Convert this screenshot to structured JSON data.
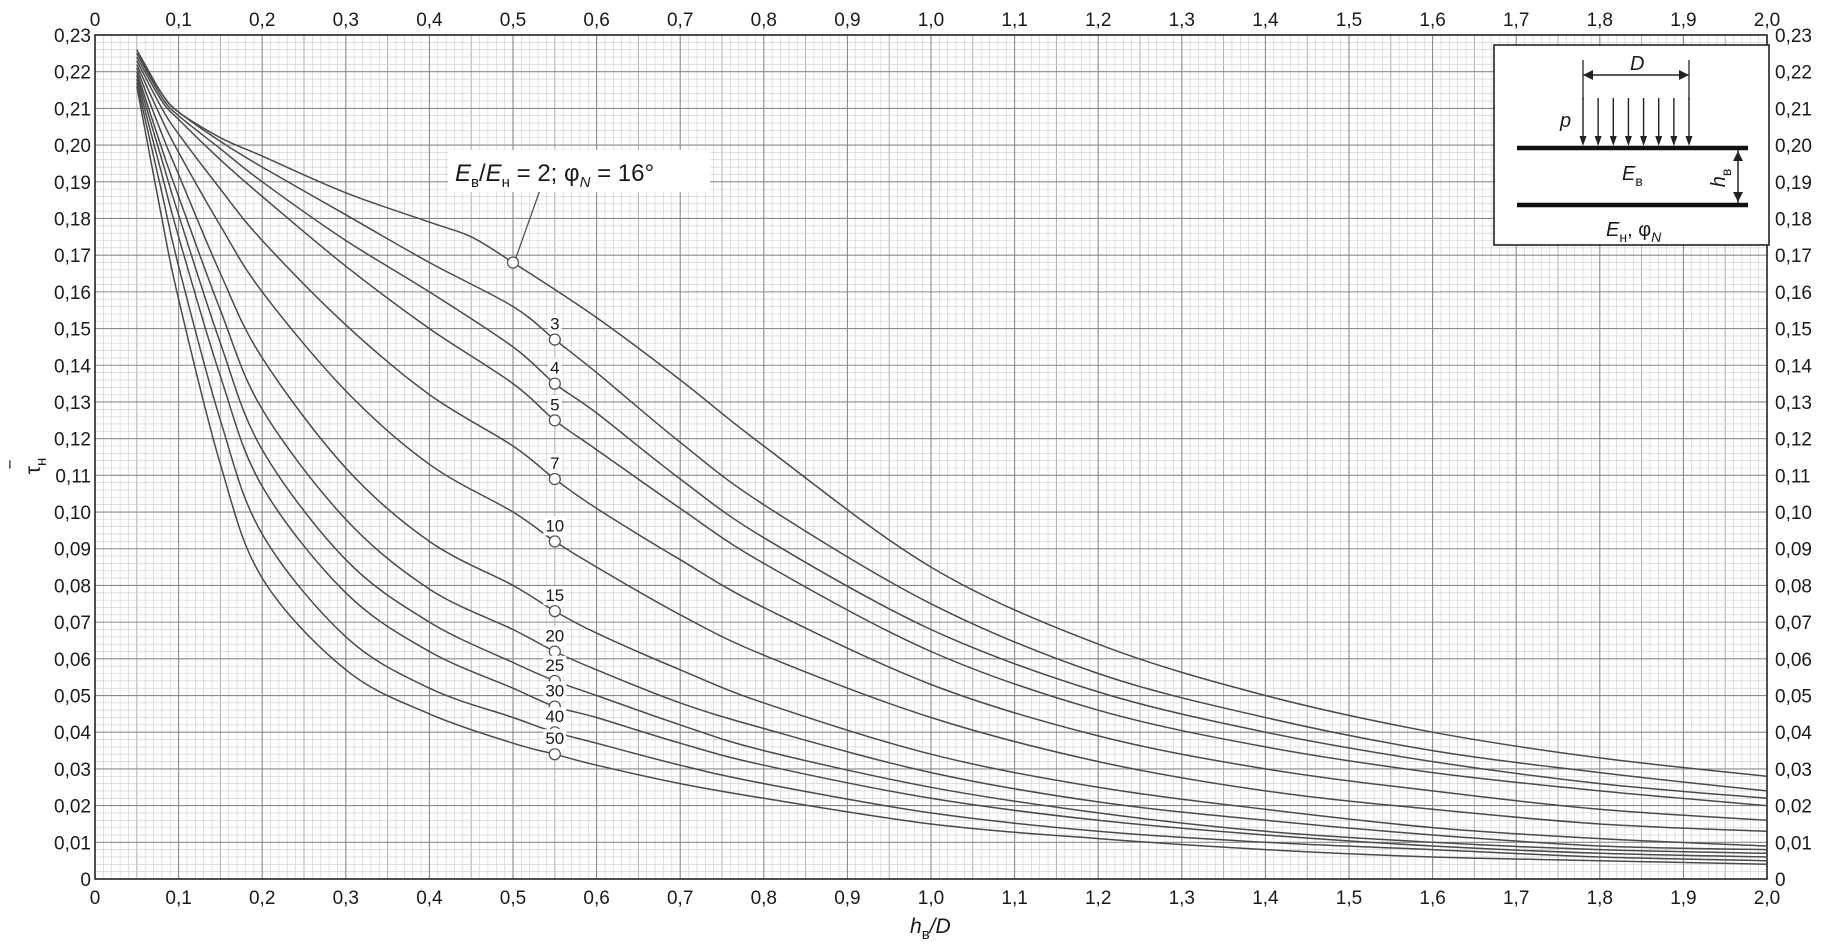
{
  "chart_data": {
    "type": "line",
    "x_axis": {
      "range": [
        0,
        2.0
      ],
      "major_step": 0.1,
      "minor_step": 0.01,
      "tick_labels": [
        "0",
        "0,1",
        "0,2",
        "0,3",
        "0,4",
        "0,5",
        "0,6",
        "0,7",
        "0,8",
        "0,9",
        "1,0",
        "1,1",
        "1,2",
        "1,3",
        "1,4",
        "1,5",
        "1,6",
        "1,7",
        "1,8",
        "1,9",
        "2,0"
      ],
      "label_main": "h",
      "label_sub": "в",
      "label_rest": "/D"
    },
    "y_axis": {
      "range": [
        0,
        0.23
      ],
      "major_step": 0.01,
      "minor_step": 0.002,
      "tick_labels": [
        "0",
        "0,01",
        "0,02",
        "0,03",
        "0,04",
        "0,05",
        "0,06",
        "0,07",
        "0,08",
        "0,09",
        "0,10",
        "0,11",
        "0,12",
        "0,13",
        "0,14",
        "0,15",
        "0,16",
        "0,17",
        "0,18",
        "0,19",
        "0,20",
        "0,21",
        "0,22",
        "0,23"
      ],
      "label_main": "τ",
      "label_sub": "н",
      "label_over": "‾"
    },
    "grid": true,
    "annotation": {
      "e1": "E",
      "e1_sub": "в",
      "slash": "/",
      "e2": "E",
      "e2_sub": "н",
      "eq": " = 2; ",
      "phi": "φ",
      "phi_sub": "N",
      "deg": " = 16°",
      "x": 0.5,
      "y": 0.168
    },
    "series": [
      {
        "name": "2",
        "label_x": 0.5,
        "label_y": 0.168,
        "x": [
          0.05,
          0.08,
          0.1,
          0.15,
          0.2,
          0.3,
          0.4,
          0.45,
          0.5,
          0.6,
          0.7,
          0.8,
          1.0,
          1.2,
          1.4,
          1.6,
          1.8,
          2.0
        ],
        "y": [
          0.226,
          0.214,
          0.209,
          0.202,
          0.197,
          0.187,
          0.179,
          0.175,
          0.168,
          0.153,
          0.136,
          0.118,
          0.085,
          0.064,
          0.05,
          0.04,
          0.033,
          0.028
        ]
      },
      {
        "name": "3",
        "label_x": 0.55,
        "label_y": 0.147,
        "x": [
          0.05,
          0.08,
          0.1,
          0.15,
          0.2,
          0.3,
          0.4,
          0.5,
          0.55,
          0.6,
          0.7,
          0.8,
          1.0,
          1.2,
          1.4,
          1.6,
          1.8,
          2.0
        ],
        "y": [
          0.225,
          0.214,
          0.209,
          0.201,
          0.194,
          0.181,
          0.168,
          0.156,
          0.147,
          0.138,
          0.119,
          0.102,
          0.075,
          0.056,
          0.044,
          0.035,
          0.029,
          0.024
        ]
      },
      {
        "name": "4",
        "label_x": 0.55,
        "label_y": 0.135,
        "x": [
          0.05,
          0.08,
          0.1,
          0.15,
          0.2,
          0.3,
          0.4,
          0.5,
          0.55,
          0.6,
          0.7,
          0.8,
          1.0,
          1.2,
          1.4,
          1.6,
          1.8,
          2.0
        ],
        "y": [
          0.225,
          0.213,
          0.208,
          0.199,
          0.19,
          0.174,
          0.16,
          0.145,
          0.135,
          0.127,
          0.109,
          0.093,
          0.068,
          0.051,
          0.04,
          0.032,
          0.026,
          0.022
        ]
      },
      {
        "name": "5",
        "label_x": 0.55,
        "label_y": 0.125,
        "x": [
          0.05,
          0.08,
          0.1,
          0.15,
          0.2,
          0.3,
          0.4,
          0.5,
          0.55,
          0.6,
          0.7,
          0.8,
          1.0,
          1.2,
          1.4,
          1.6,
          1.8,
          2.0
        ],
        "y": [
          0.224,
          0.212,
          0.207,
          0.196,
          0.186,
          0.167,
          0.15,
          0.135,
          0.125,
          0.117,
          0.101,
          0.086,
          0.062,
          0.046,
          0.036,
          0.029,
          0.024,
          0.02
        ]
      },
      {
        "name": "7",
        "label_x": 0.55,
        "label_y": 0.109,
        "x": [
          0.05,
          0.08,
          0.1,
          0.15,
          0.2,
          0.3,
          0.4,
          0.5,
          0.55,
          0.6,
          0.7,
          0.8,
          1.0,
          1.2,
          1.4,
          1.6,
          1.8,
          2.0
        ],
        "y": [
          0.223,
          0.21,
          0.203,
          0.188,
          0.174,
          0.151,
          0.132,
          0.118,
          0.109,
          0.101,
          0.087,
          0.074,
          0.053,
          0.039,
          0.03,
          0.024,
          0.019,
          0.016
        ]
      },
      {
        "name": "10",
        "label_x": 0.55,
        "label_y": 0.092,
        "x": [
          0.05,
          0.08,
          0.1,
          0.15,
          0.2,
          0.3,
          0.4,
          0.5,
          0.55,
          0.6,
          0.7,
          0.8,
          1.0,
          1.2,
          1.4,
          1.6,
          1.8,
          2.0
        ],
        "y": [
          0.222,
          0.207,
          0.198,
          0.178,
          0.16,
          0.133,
          0.113,
          0.1,
          0.092,
          0.085,
          0.072,
          0.061,
          0.044,
          0.032,
          0.024,
          0.019,
          0.015,
          0.013
        ]
      },
      {
        "name": "15",
        "label_x": 0.55,
        "label_y": 0.073,
        "x": [
          0.05,
          0.08,
          0.1,
          0.15,
          0.2,
          0.3,
          0.4,
          0.5,
          0.55,
          0.6,
          0.7,
          0.8,
          1.0,
          1.2,
          1.4,
          1.6,
          1.8,
          2.0
        ],
        "y": [
          0.221,
          0.203,
          0.192,
          0.165,
          0.142,
          0.112,
          0.092,
          0.08,
          0.073,
          0.067,
          0.057,
          0.048,
          0.034,
          0.025,
          0.019,
          0.014,
          0.011,
          0.009
        ]
      },
      {
        "name": "20",
        "label_x": 0.55,
        "label_y": 0.062,
        "x": [
          0.05,
          0.08,
          0.1,
          0.15,
          0.2,
          0.3,
          0.4,
          0.5,
          0.55,
          0.6,
          0.7,
          0.8,
          1.0,
          1.2,
          1.4,
          1.6,
          1.8,
          2.0
        ],
        "y": [
          0.22,
          0.199,
          0.186,
          0.155,
          0.128,
          0.098,
          0.079,
          0.068,
          0.062,
          0.057,
          0.048,
          0.041,
          0.029,
          0.021,
          0.016,
          0.012,
          0.009,
          0.008
        ]
      },
      {
        "name": "25",
        "label_x": 0.55,
        "label_y": 0.054,
        "x": [
          0.05,
          0.08,
          0.1,
          0.15,
          0.2,
          0.3,
          0.4,
          0.5,
          0.55,
          0.6,
          0.7,
          0.8,
          1.0,
          1.2,
          1.4,
          1.6,
          1.8,
          2.0
        ],
        "y": [
          0.219,
          0.196,
          0.181,
          0.146,
          0.117,
          0.087,
          0.07,
          0.059,
          0.054,
          0.05,
          0.042,
          0.035,
          0.025,
          0.018,
          0.013,
          0.01,
          0.008,
          0.007
        ]
      },
      {
        "name": "30",
        "label_x": 0.55,
        "label_y": 0.047,
        "x": [
          0.05,
          0.08,
          0.1,
          0.15,
          0.2,
          0.3,
          0.4,
          0.5,
          0.55,
          0.6,
          0.7,
          0.8,
          1.0,
          1.2,
          1.4,
          1.6,
          1.8,
          2.0
        ],
        "y": [
          0.218,
          0.192,
          0.175,
          0.137,
          0.107,
          0.078,
          0.062,
          0.052,
          0.047,
          0.044,
          0.037,
          0.031,
          0.022,
          0.016,
          0.012,
          0.009,
          0.007,
          0.006
        ]
      },
      {
        "name": "40",
        "label_x": 0.55,
        "label_y": 0.04,
        "x": [
          0.05,
          0.08,
          0.1,
          0.15,
          0.2,
          0.3,
          0.4,
          0.5,
          0.55,
          0.6,
          0.7,
          0.8,
          1.0,
          1.2,
          1.4,
          1.6,
          1.8,
          2.0
        ],
        "y": [
          0.217,
          0.187,
          0.167,
          0.125,
          0.094,
          0.066,
          0.052,
          0.044,
          0.04,
          0.037,
          0.031,
          0.026,
          0.018,
          0.013,
          0.01,
          0.008,
          0.006,
          0.005
        ]
      },
      {
        "name": "50",
        "label_x": 0.55,
        "label_y": 0.034,
        "x": [
          0.05,
          0.08,
          0.1,
          0.15,
          0.2,
          0.3,
          0.4,
          0.5,
          0.55,
          0.6,
          0.7,
          0.8,
          1.0,
          1.2,
          1.4,
          1.6,
          1.8,
          2.0
        ],
        "y": [
          0.216,
          0.18,
          0.158,
          0.113,
          0.082,
          0.057,
          0.045,
          0.037,
          0.034,
          0.031,
          0.026,
          0.022,
          0.015,
          0.011,
          0.008,
          0.006,
          0.005,
          0.004
        ]
      }
    ]
  },
  "inset": {
    "d_label": "D",
    "p_label": "p",
    "layer_e": "E",
    "layer_e_sub": "в",
    "h_label": "h",
    "h_sub": "в",
    "base_e": "E",
    "base_e_sub": "н",
    "base_sep": ", ",
    "base_phi": "φ",
    "base_phi_sub": "N"
  }
}
